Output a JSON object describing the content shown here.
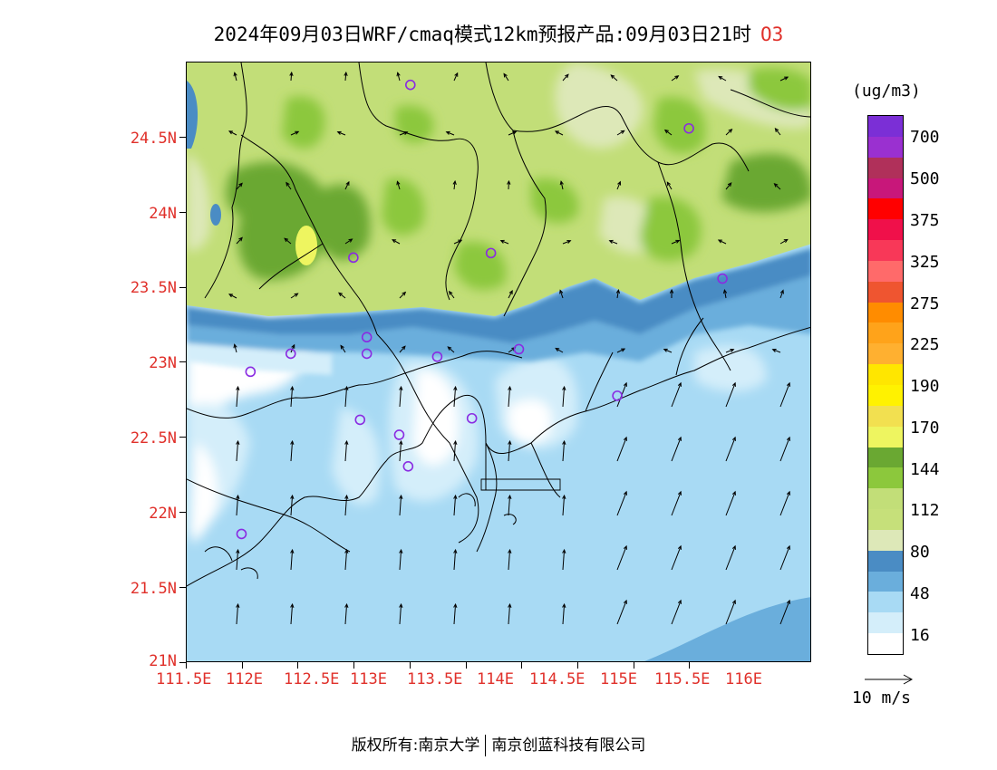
{
  "title": {
    "main": "2024年09月03日WRF/cmaq模式12km预报产品:09月03日21时",
    "species": "O3"
  },
  "axes": {
    "lat_labels": [
      "24.5N",
      "24N",
      "23.5N",
      "23N",
      "22.5N",
      "22N",
      "21.5N",
      "21N"
    ],
    "lon_labels": [
      "111.5E",
      "112E",
      "112.5E",
      "113E",
      "113.5E",
      "114E",
      "114.5E",
      "115E",
      "115.5E",
      "116E"
    ]
  },
  "legend": {
    "unit": "(ug/m3)",
    "labels": [
      "700",
      "500",
      "375",
      "325",
      "275",
      "225",
      "190",
      "170",
      "144",
      "112",
      "80",
      "48",
      "16"
    ],
    "colors": [
      "#7b2fd6",
      "#9a30d0",
      "#b0305a",
      "#c8177a",
      "#ff0000",
      "#f0104a",
      "#f83858",
      "#ff6a6a",
      "#ef5530",
      "#ff8c00",
      "#ffa31a",
      "#ffb030",
      "#ffe600",
      "#fff200",
      "#f2e050",
      "#eef560",
      "#6aa832",
      "#8cc83c",
      "#c2de78",
      "#c6e07a",
      "#dde8b8",
      "#4a8cc4",
      "#6aaedc",
      "#a8daf4",
      "#d4eefa",
      "#ffffff"
    ]
  },
  "wind_reference": {
    "label": "10 m/s"
  },
  "stations": [
    [
      113.5,
      24.85
    ],
    [
      115.99,
      24.56
    ],
    [
      112.99,
      23.7
    ],
    [
      114.22,
      23.73
    ],
    [
      116.29,
      23.56
    ],
    [
      112.43,
      23.06
    ],
    [
      113.11,
      23.17
    ],
    [
      113.11,
      23.06
    ],
    [
      113.74,
      23.04
    ],
    [
      114.47,
      23.09
    ],
    [
      112.07,
      22.94
    ],
    [
      115.35,
      22.78
    ],
    [
      113.05,
      22.62
    ],
    [
      114.05,
      22.63
    ],
    [
      113.4,
      22.52
    ],
    [
      113.48,
      22.31
    ],
    [
      111.99,
      21.86
    ]
  ],
  "footer": {
    "copyright": "版权所有:南京大学",
    "company": "南京创蓝科技有限公司"
  }
}
